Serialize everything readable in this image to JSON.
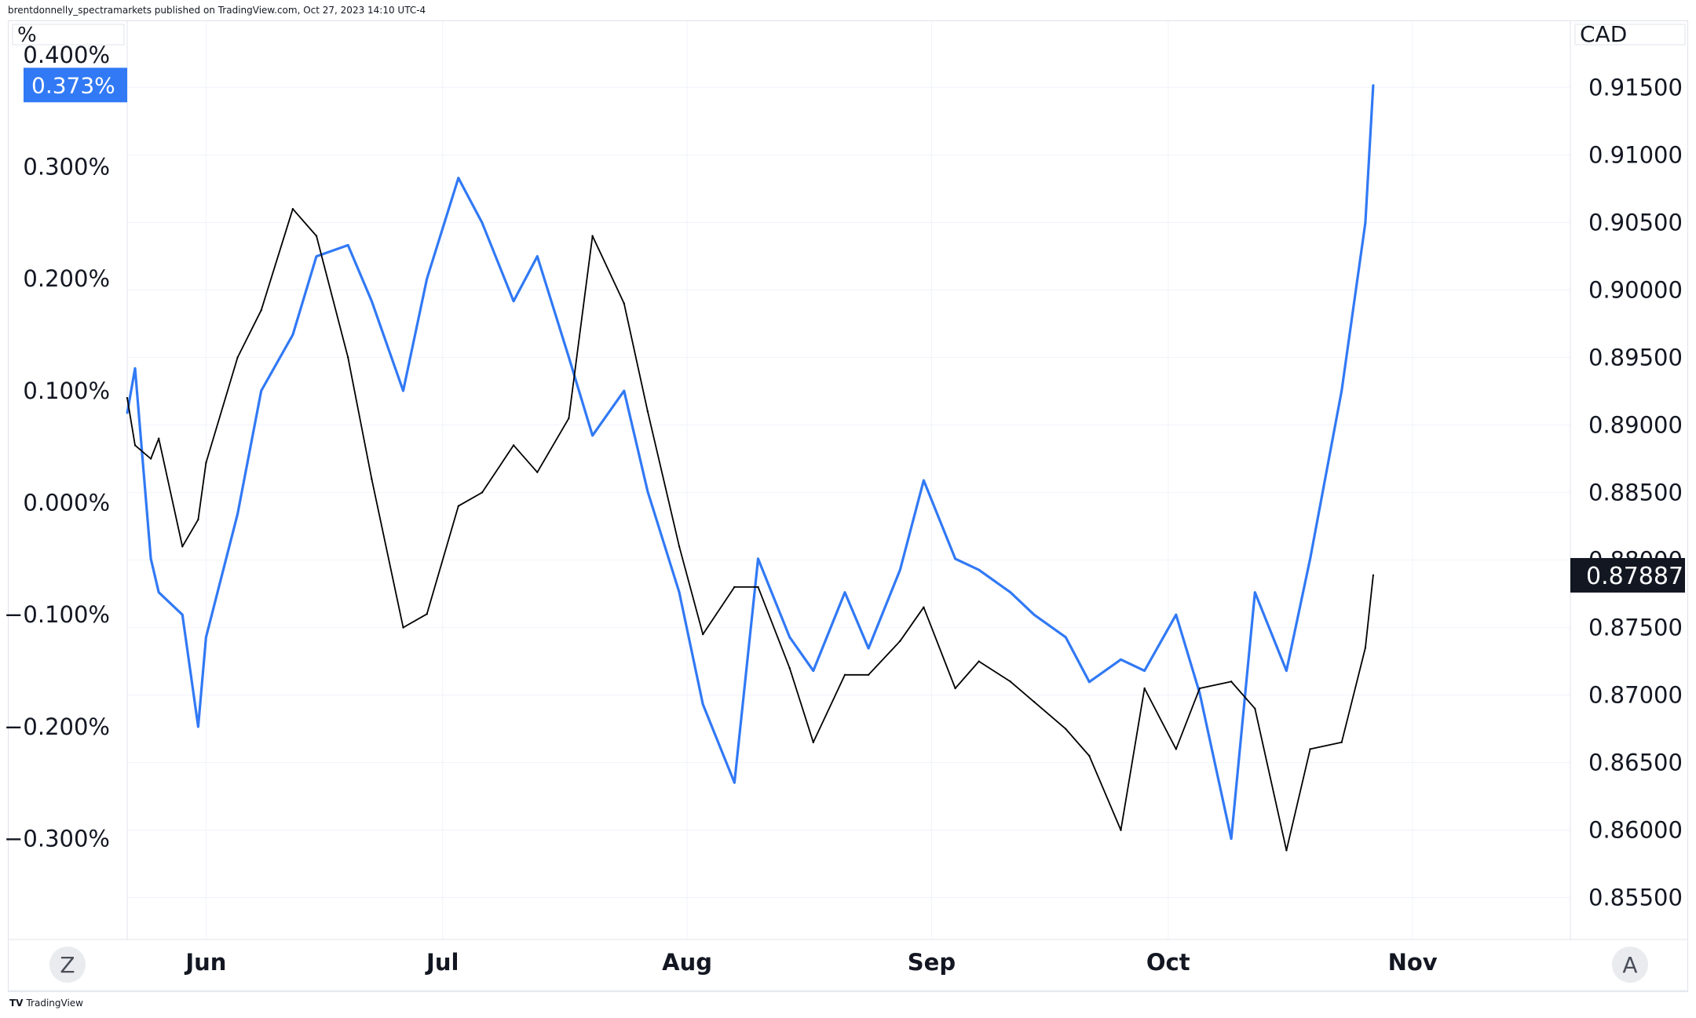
{
  "header": {
    "attribution": "brentdonnelly_spectramarkets published on TradingView.com, Oct 27, 2023 14:10 UTC-4"
  },
  "footer": {
    "logo_mark": "TV",
    "logo_text": "TradingView"
  },
  "axis_corner": {
    "left_unit": "%",
    "right_unit": "CAD"
  },
  "buttons": {
    "left_scale": "Z",
    "right_scale": "A"
  },
  "colors": {
    "series_blue": "#3179f5",
    "series_black": "#000000",
    "grid": "#f0f3fa",
    "label_black": "#131722"
  },
  "chart_data": {
    "type": "line",
    "x_ticks": [
      "Jun",
      "Jul",
      "Aug",
      "Sep",
      "Oct",
      "Nov"
    ],
    "left_axis": {
      "unit": "%",
      "ticks": [
        "0.400%",
        "0.300%",
        "0.200%",
        "0.100%",
        "0.000%",
        "−0.100%",
        "−0.200%",
        "−0.300%"
      ],
      "tick_values": [
        0.4,
        0.3,
        0.2,
        0.1,
        0.0,
        -0.1,
        -0.2,
        -0.3
      ],
      "ylim": [
        -0.39,
        0.43
      ],
      "last_value_label": "0.373%"
    },
    "right_axis": {
      "unit": "CAD",
      "ticks": [
        "0.91500",
        "0.91000",
        "0.90500",
        "0.90000",
        "0.89500",
        "0.89000",
        "0.88500",
        "0.88000",
        "0.87500",
        "0.87000",
        "0.86500",
        "0.86000",
        "0.85500"
      ],
      "tick_values": [
        0.915,
        0.91,
        0.905,
        0.9,
        0.895,
        0.89,
        0.885,
        0.88,
        0.875,
        0.87,
        0.865,
        0.86,
        0.855
      ],
      "ylim": [
        0.8519,
        0.9199
      ],
      "last_value_label": "0.87887"
    },
    "dates": [
      "2023-05-22",
      "2023-05-23",
      "2023-05-25",
      "2023-05-26",
      "2023-05-29",
      "2023-05-31",
      "2023-06-01",
      "2023-06-05",
      "2023-06-08",
      "2023-06-12",
      "2023-06-15",
      "2023-06-19",
      "2023-06-22",
      "2023-06-26",
      "2023-06-29",
      "2023-07-03",
      "2023-07-06",
      "2023-07-10",
      "2023-07-13",
      "2023-07-17",
      "2023-07-20",
      "2023-07-24",
      "2023-07-27",
      "2023-07-31",
      "2023-08-03",
      "2023-08-07",
      "2023-08-10",
      "2023-08-14",
      "2023-08-17",
      "2023-08-21",
      "2023-08-24",
      "2023-08-28",
      "2023-08-31",
      "2023-09-04",
      "2023-09-07",
      "2023-09-11",
      "2023-09-14",
      "2023-09-18",
      "2023-09-21",
      "2023-09-25",
      "2023-09-28",
      "2023-10-02",
      "2023-10-05",
      "2023-10-09",
      "2023-10-12",
      "2023-10-16",
      "2023-10-19",
      "2023-10-23",
      "2023-10-26",
      "2023-10-27"
    ],
    "series": [
      {
        "axis": "left",
        "values": [
          0.08,
          0.12,
          -0.05,
          -0.08,
          -0.1,
          -0.2,
          -0.12,
          -0.01,
          0.1,
          0.15,
          0.22,
          0.23,
          0.18,
          0.1,
          0.2,
          0.29,
          0.25,
          0.18,
          0.22,
          0.13,
          0.06,
          0.1,
          0.01,
          -0.08,
          -0.18,
          -0.25,
          -0.05,
          -0.12,
          -0.15,
          -0.08,
          -0.13,
          -0.06,
          0.02,
          -0.05,
          -0.06,
          -0.08,
          -0.1,
          -0.12,
          -0.16,
          -0.14,
          -0.15,
          -0.1,
          -0.17,
          -0.3,
          -0.08,
          -0.15,
          -0.05,
          0.1,
          0.25,
          0.373
        ]
      },
      {
        "axis": "right",
        "values": [
          0.892,
          0.8885,
          0.8875,
          0.889,
          0.881,
          0.883,
          0.8872,
          0.895,
          0.8985,
          0.906,
          0.904,
          0.895,
          0.886,
          0.875,
          0.876,
          0.884,
          0.885,
          0.8885,
          0.8865,
          0.8905,
          0.904,
          0.899,
          0.891,
          0.881,
          0.8745,
          0.878,
          0.878,
          0.872,
          0.8665,
          0.8715,
          0.8715,
          0.874,
          0.8765,
          0.8705,
          0.8725,
          0.871,
          0.8695,
          0.8675,
          0.8655,
          0.86,
          0.8705,
          0.866,
          0.8705,
          0.871,
          0.869,
          0.8585,
          0.866,
          0.8665,
          0.8735,
          0.87887
        ]
      }
    ]
  }
}
